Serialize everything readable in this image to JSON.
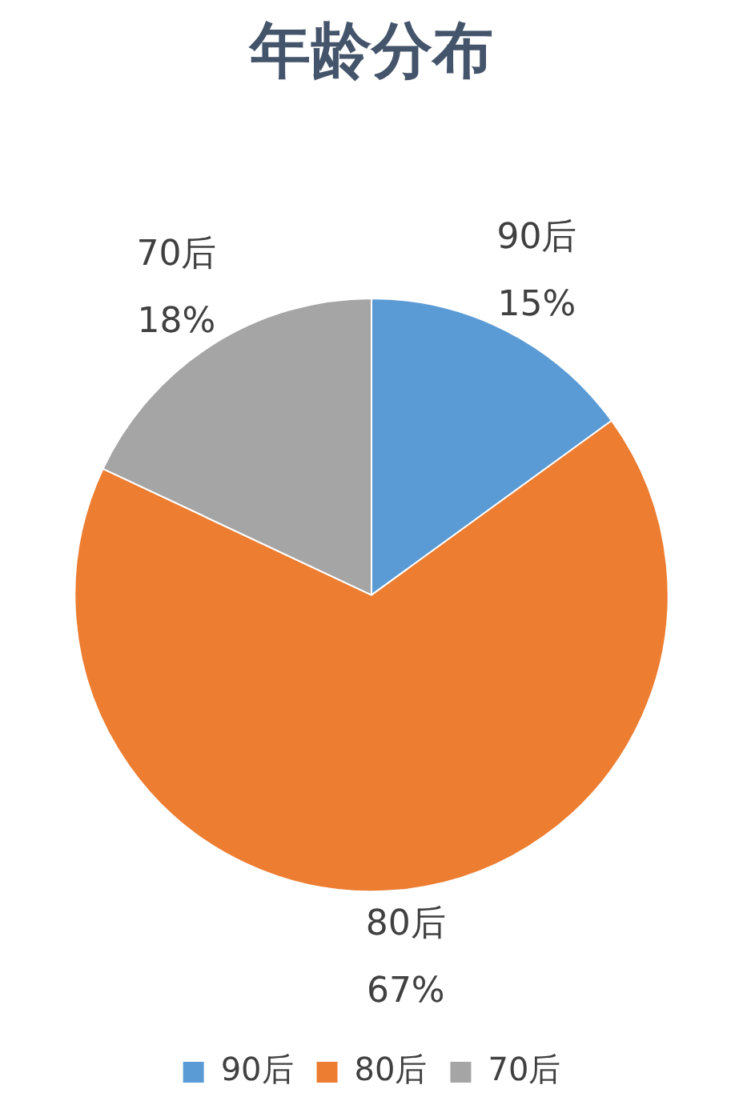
{
  "chart_data": {
    "type": "pie",
    "title": "年龄分布",
    "categories": [
      "90后",
      "80后",
      "70后"
    ],
    "values": [
      15,
      67,
      18
    ],
    "colors": [
      "#5b9bd5",
      "#ed7d31",
      "#a5a5a5"
    ],
    "value_labels": [
      "15%",
      "67%",
      "18%"
    ],
    "legend": "bottom"
  }
}
